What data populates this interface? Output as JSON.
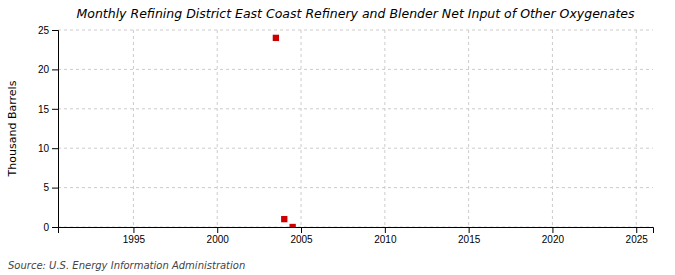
{
  "chart_data": {
    "type": "scatter",
    "title": "Monthly Refining District East Coast Refinery and Blender Net Input of Other Oxygenates",
    "ylabel": "Thousand Barrels",
    "annotations": [
      "Source: U.S. Energy Information Administration"
    ],
    "x": [
      2003.5,
      2004.0,
      2004.5
    ],
    "values": [
      24.0,
      1.0,
      0.0
    ],
    "color": "#cc0000",
    "marker": "square",
    "xlim": [
      1990.5,
      2026
    ],
    "ylim": [
      0,
      25
    ],
    "xticks": [
      1995,
      2000,
      2005,
      2010,
      2015,
      2020,
      2025
    ],
    "yticks": [
      0,
      5,
      10,
      15,
      20,
      25
    ],
    "grid": true
  }
}
